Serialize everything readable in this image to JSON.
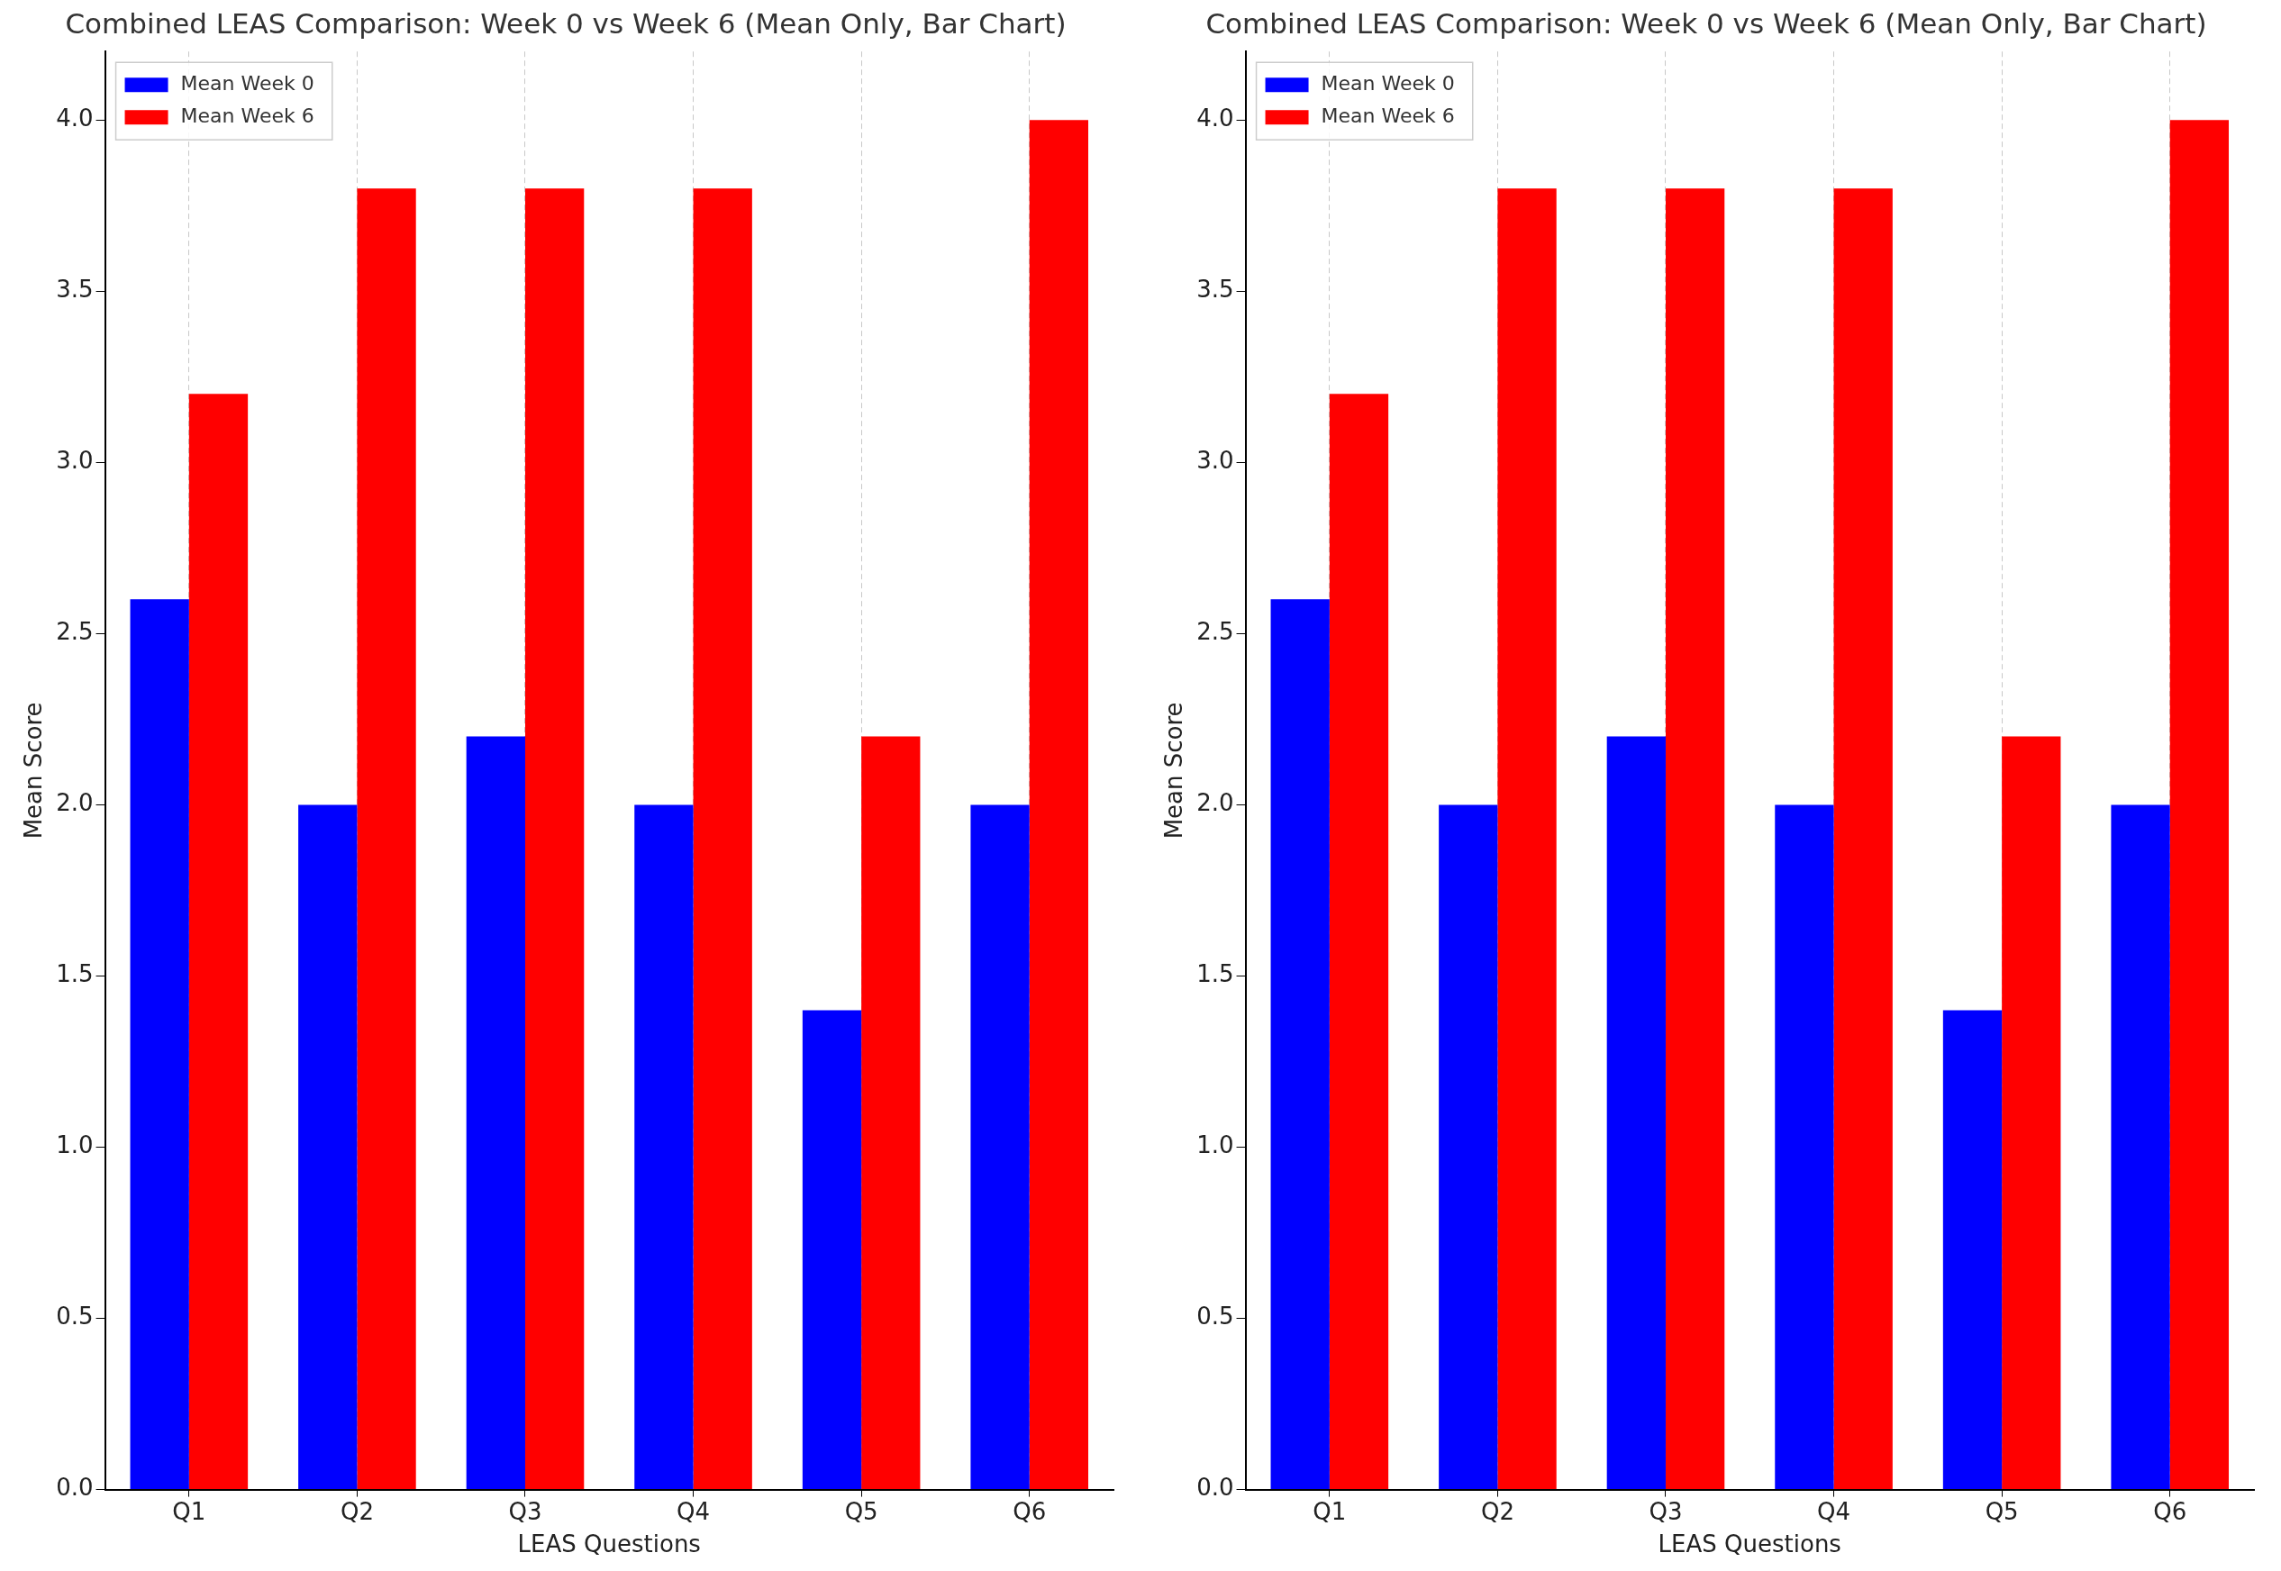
{
  "chart_data": [
    {
      "type": "bar",
      "title": "Combined LEAS Comparison: Week 0 vs Week 6 (Mean Only, Bar Chart)",
      "xlabel": "LEAS Questions",
      "ylabel": "Mean Score",
      "categories": [
        "Q1",
        "Q2",
        "Q3",
        "Q4",
        "Q5",
        "Q6"
      ],
      "series": [
        {
          "name": "Mean Week 0",
          "color": "#0000ff",
          "values": [
            2.6,
            2.0,
            2.2,
            2.0,
            1.4,
            2.0
          ]
        },
        {
          "name": "Mean Week 6",
          "color": "#ff0000",
          "values": [
            3.2,
            3.8,
            3.8,
            3.8,
            2.2,
            4.0
          ]
        }
      ],
      "ylim": [
        0,
        4.2
      ],
      "yticks": [
        {
          "value": 0,
          "label": "0.0"
        },
        0.5,
        {
          "value": 1,
          "label": "1.0"
        },
        1.5,
        {
          "value": 2,
          "label": "2.0"
        },
        2.5,
        {
          "value": 3,
          "label": "3.0"
        },
        3.5,
        {
          "value": 4,
          "label": "4.0"
        }
      ],
      "grid": "x",
      "legend": "top left"
    },
    {
      "type": "bar",
      "title": "Combined LEAS Comparison: Week 0 vs Week 6 (Mean Only, Bar Chart)",
      "xlabel": "LEAS Questions",
      "ylabel": "Mean Score",
      "categories": [
        "Q1",
        "Q2",
        "Q3",
        "Q4",
        "Q5",
        "Q6"
      ],
      "series": [
        {
          "name": "Mean Week 0",
          "color": "#0000ff",
          "values": [
            2.6,
            2.0,
            2.2,
            2.0,
            1.4,
            2.0
          ]
        },
        {
          "name": "Mean Week 6",
          "color": "#ff0000",
          "values": [
            3.2,
            3.8,
            3.8,
            3.8,
            2.2,
            4.0
          ]
        }
      ],
      "ylim": [
        0,
        4.2
      ],
      "yticks": [
        {
          "value": 0,
          "label": "0.0"
        },
        0.5,
        {
          "value": 1,
          "label": "1.0"
        },
        1.5,
        {
          "value": 2,
          "label": "2.0"
        },
        2.5,
        {
          "value": 3,
          "label": "3.0"
        },
        3.5,
        {
          "value": 4,
          "label": "4.0"
        }
      ],
      "grid": "x",
      "legend": "top left"
    }
  ]
}
